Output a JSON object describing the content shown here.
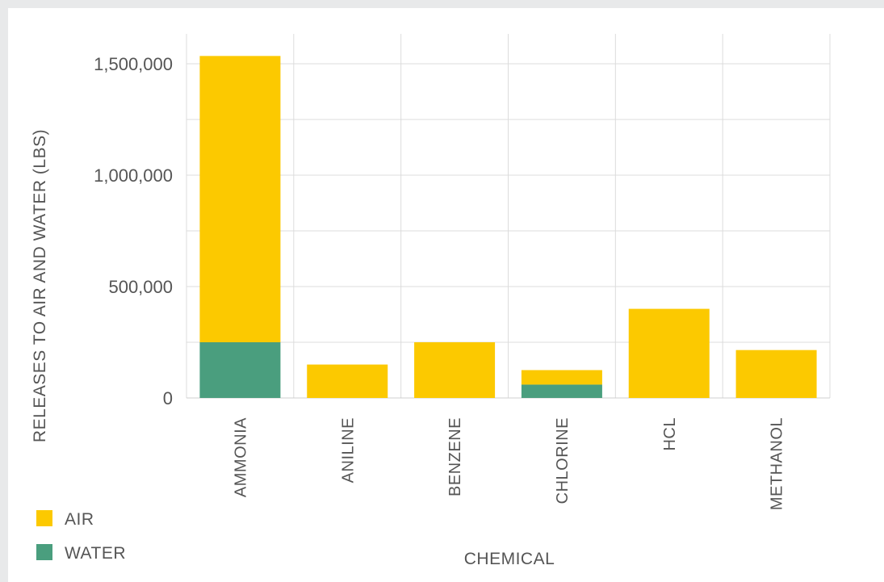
{
  "chart_data": {
    "type": "bar",
    "stacked": true,
    "categories": [
      "AMMONIA",
      "ANILINE",
      "BENZENE",
      "CHLORINE",
      "HCL",
      "METHANOL"
    ],
    "series": [
      {
        "name": "WATER",
        "color": "#4a9e7e",
        "values": [
          250000,
          0,
          0,
          60000,
          0,
          0
        ]
      },
      {
        "name": "AIR",
        "color": "#fcc900",
        "values": [
          1285000,
          150000,
          250000,
          65000,
          400000,
          215000
        ]
      }
    ],
    "xlabel": "CHEMICAL",
    "ylabel": "RELEASES TO AIR AND WATER (LBS)",
    "ylim": [
      0,
      1500000
    ],
    "yticks": [
      "0",
      "500,000",
      "1,000,000",
      "1,500,000"
    ],
    "grid": true,
    "legend": "bottom-left",
    "legend_order": [
      "AIR",
      "WATER"
    ]
  }
}
